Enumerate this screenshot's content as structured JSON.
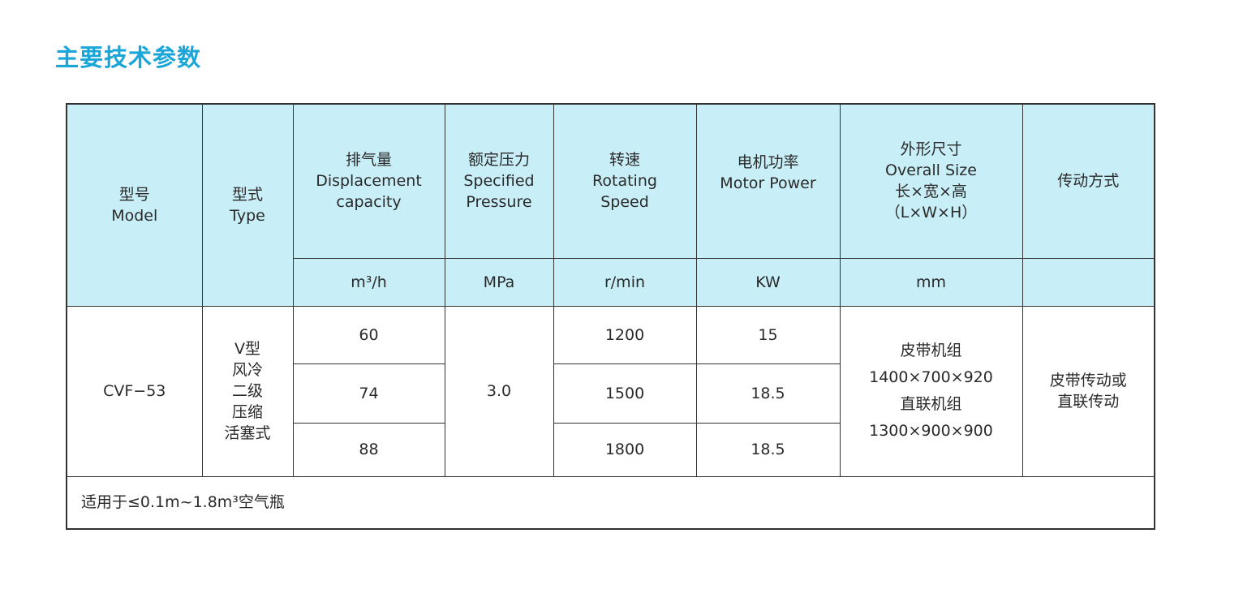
{
  "title": "主要技术参数",
  "header": {
    "model": [
      "型号",
      "Model"
    ],
    "type": [
      "型式",
      "Type"
    ],
    "displacement": [
      "排气量",
      "Displacement",
      "capacity"
    ],
    "pressure": [
      "额定压力",
      "Specified",
      "Pressure"
    ],
    "speed": [
      "转速",
      "Rotating",
      "Speed"
    ],
    "power": [
      "电机功率",
      "Motor Power"
    ],
    "size": [
      "外形尺寸",
      "Overall Size",
      "长×宽×高",
      "（L×W×H）"
    ],
    "drive": [
      "传动方式"
    ]
  },
  "units": {
    "displacement": "m³/h",
    "pressure": "MPa",
    "speed": "r/min",
    "power": "KW",
    "size": "mm"
  },
  "body": {
    "model": "CVF−53",
    "type": [
      "V型",
      "风冷",
      "二级",
      "压缩",
      "活塞式"
    ],
    "pressure": "3.0",
    "rows": [
      {
        "displacement": "60",
        "speed": "1200",
        "power": "15"
      },
      {
        "displacement": "74",
        "speed": "1500",
        "power": "18.5"
      },
      {
        "displacement": "88",
        "speed": "1800",
        "power": "18.5"
      }
    ],
    "size": [
      "皮带机组",
      "1400×700×920",
      "直联机组",
      "1300×900×900"
    ],
    "drive": [
      "皮带传动或",
      "直联传动"
    ]
  },
  "colors": {
    "title": "#1ba6d9",
    "header_bg": "#c8eff7"
  },
  "footer": "适用于≤0.1m~1.8m³空气瓶"
}
